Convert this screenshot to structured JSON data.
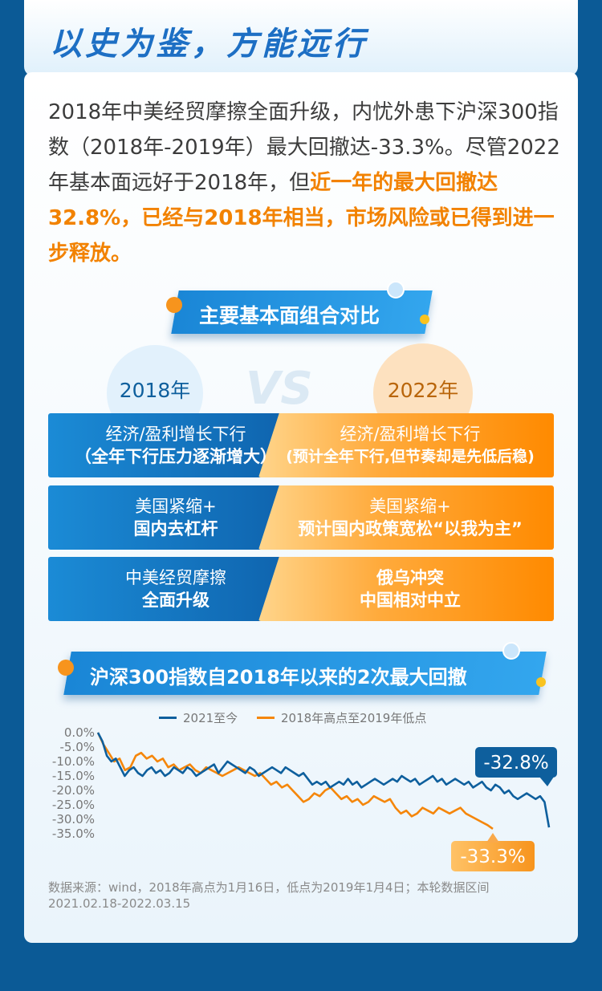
{
  "header": {
    "title": "以史为鉴，方能远行"
  },
  "intro": {
    "normal1": "2018年中美经贸摩擦全面升级，内忧外患下沪深300指数（2018年-2019年）最大回撤达-33.3%。尽管2022年基本面远好于2018年，但",
    "highlight": "近一年的最大回撤达32.8%，已经与2018年相当，市场风险或已得到进一步释放。"
  },
  "compare": {
    "section_title": "主要基本面组合对比",
    "year_left": "2018年",
    "year_right": "2022年",
    "vs": "VS",
    "rows": [
      {
        "left1": "经济/盈利增长下行",
        "left2": "（全年下行压力逐渐增大）",
        "right1": "经济/盈利增长下行",
        "right2": "(预计全年下行,但节奏却是先低后稳)"
      },
      {
        "left1": "美国紧缩+",
        "left2": "国内去杠杆",
        "right1": "美国紧缩+",
        "right2": "预计国内政策宽松“以我为主”"
      },
      {
        "left1": "中美经贸摩擦",
        "left2": "全面升级",
        "right1": "",
        "right2": "俄乌冲突\n中国相对中立"
      }
    ]
  },
  "chart_section": {
    "title": "沪深300指数自2018年以来的2次最大回撤"
  },
  "chart_data": {
    "type": "line",
    "title": "沪深300指数自2018年以来的2次最大回撤",
    "ylim": [
      -35,
      0
    ],
    "yticks": [
      "0.0%",
      "-5.0%",
      "-10.0%",
      "-15.0%",
      "-20.0%",
      "-25.0%",
      "-30.0%",
      "-35.0%"
    ],
    "legend_position": "top-center",
    "grid": false,
    "series": [
      {
        "name": "2021至今",
        "color": "#0e5f9d",
        "values": [
          0,
          -3,
          -8,
          -10,
          -9,
          -12,
          -15,
          -13,
          -12,
          -14,
          -15,
          -13,
          -12,
          -14,
          -13,
          -15,
          -14,
          -12,
          -13,
          -14,
          -12,
          -13,
          -15,
          -14,
          -13,
          -12,
          -11,
          -14,
          -12,
          -10,
          -11,
          -12,
          -13,
          -14,
          -12,
          -13,
          -15,
          -14,
          -13,
          -12,
          -13,
          -14,
          -12,
          -13,
          -14,
          -15,
          -14,
          -16,
          -18,
          -17,
          -18,
          -17,
          -19,
          -18,
          -17,
          -18,
          -16,
          -18,
          -17,
          -19,
          -18,
          -17,
          -16,
          -17,
          -18,
          -17,
          -16,
          -17,
          -15,
          -16,
          -17,
          -16,
          -18,
          -17,
          -16,
          -15,
          -17,
          -16,
          -18,
          -17,
          -16,
          -17,
          -18,
          -17,
          -19,
          -18,
          -17,
          -19,
          -20,
          -18,
          -19,
          -21,
          -20,
          -22,
          -23,
          -22,
          -21,
          -22,
          -23,
          -22,
          -24,
          -32.8
        ]
      },
      {
        "name": "2018年高点至2019年低点",
        "color": "#f5860a",
        "values": [
          0,
          -4,
          -7,
          -10,
          -9,
          -13,
          -12,
          -8,
          -7,
          -9,
          -8,
          -10,
          -9,
          -12,
          -11,
          -13,
          -12,
          -11,
          -13,
          -14,
          -12,
          -13,
          -14,
          -15,
          -14,
          -13,
          -12,
          -13,
          -14,
          -15,
          -14,
          -16,
          -18,
          -17,
          -19,
          -18,
          -20,
          -22,
          -24,
          -23,
          -21,
          -22,
          -20,
          -19,
          -21,
          -23,
          -22,
          -24,
          -23,
          -25,
          -24,
          -22,
          -23,
          -24,
          -23,
          -26,
          -28,
          -27,
          -29,
          -28,
          -26,
          -27,
          -28,
          -26,
          -27,
          -28,
          -27,
          -26,
          -28,
          -29,
          -30,
          -31,
          -32,
          -33.3
        ]
      }
    ],
    "annotations": [
      {
        "text": "-32.8%",
        "series": "2021至今",
        "color": "#0e5f9d"
      },
      {
        "text": "-33.3%",
        "series": "2018年高点至2019年低点",
        "color": "#f5a623"
      }
    ]
  },
  "note": "数据来源：wind，2018年高点为1月16日，低点为2019年1月4日；本轮数据区间2021.02.18-2022.03.15"
}
